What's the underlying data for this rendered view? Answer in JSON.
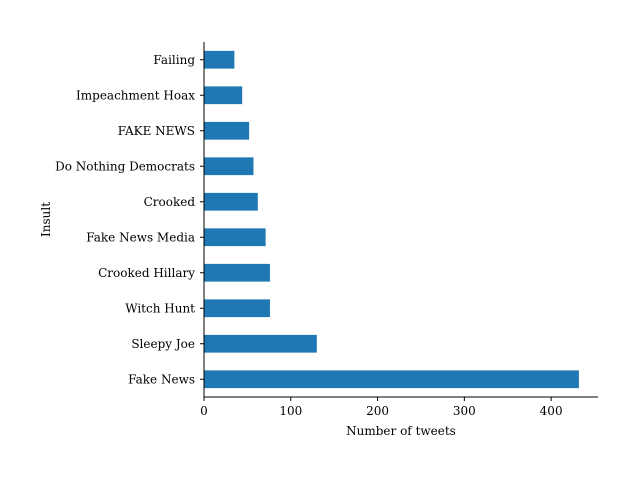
{
  "chart_data": {
    "type": "bar",
    "orientation": "horizontal",
    "categories": [
      "Fake News",
      "Sleepy Joe",
      "Witch Hunt",
      "Crooked Hillary",
      "Fake News Media",
      "Crooked",
      "Do Nothing Democrats",
      "FAKE NEWS",
      "Impeachment Hoax",
      "Failing"
    ],
    "values": [
      432,
      130,
      76,
      76,
      71,
      62,
      57,
      52,
      44,
      35
    ],
    "xlabel": "Number of tweets",
    "ylabel": "Insult",
    "xlim": [
      0,
      454
    ],
    "xticks": [
      0,
      100,
      200,
      300,
      400
    ],
    "grid": false,
    "legend": "none",
    "colors": {
      "bar": "#1f77b4"
    }
  }
}
